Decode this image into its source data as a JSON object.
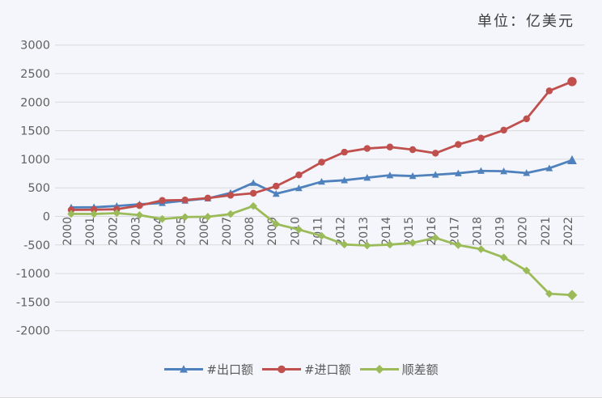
{
  "page": {
    "unit_label": "单位：亿美元"
  },
  "colors": {
    "background": "#f4f6fb",
    "gridline": "#d9d9d9",
    "tick_text": "#616161",
    "unit_text": "#3d3d3d",
    "legend_text": "#595959",
    "series_blue": "#4f81bd",
    "series_red": "#c0504d",
    "series_green": "#9bbb59"
  },
  "chart_data": {
    "type": "line",
    "title": "",
    "unit_label": "单位：亿美元",
    "xlabel": "",
    "ylabel": "",
    "x": [
      2000,
      2001,
      2002,
      2003,
      2004,
      2005,
      2006,
      2007,
      2008,
      2009,
      2010,
      2011,
      2012,
      2013,
      2014,
      2015,
      2016,
      2017,
      2018,
      2019,
      2020,
      2021,
      2022
    ],
    "ylim": [
      -2000,
      3000
    ],
    "ytick_step": 500,
    "grid": "horizontal",
    "legend_position": "bottom",
    "x_tick_rotation": -90,
    "series": [
      {
        "name": "#出口额",
        "marker": "triangle",
        "color": "#4f81bd",
        "values": [
          157,
          161,
          182,
          212,
          234,
          276,
          314,
          411,
          587,
          396,
          494,
          608,
          633,
          678,
          720,
          707,
          730,
          755,
          797,
          791,
          760,
          844,
          983
        ]
      },
      {
        "name": "#进口额",
        "marker": "circle",
        "color": "#c0504d",
        "values": [
          113,
          118,
          125,
          189,
          280,
          287,
          321,
          370,
          405,
          529,
          726,
          949,
          1125,
          1189,
          1215,
          1169,
          1106,
          1259,
          1371,
          1510,
          1708,
          2198,
          2361
        ]
      },
      {
        "name": "顺差额",
        "marker": "diamond",
        "color": "#9bbb59",
        "values": [
          44,
          42,
          57,
          23,
          -46,
          -11,
          -7,
          41,
          182,
          -133,
          -231,
          -341,
          -492,
          -510,
          -495,
          -462,
          -376,
          -503,
          -574,
          -719,
          -948,
          -1355,
          -1378
        ]
      }
    ]
  }
}
